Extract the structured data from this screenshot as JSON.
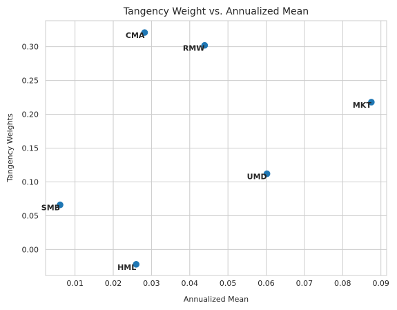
{
  "chart_data": {
    "type": "scatter",
    "title": "Tangency Weight vs. Annualized Mean",
    "xlabel": "Annualized Mean",
    "ylabel": "Tangency Weights",
    "xlim": [
      0.0023,
      0.0915
    ],
    "ylim": [
      -0.0385,
      0.3385
    ],
    "xticks": [
      0.01,
      0.02,
      0.03,
      0.04,
      0.05,
      0.06,
      0.07,
      0.08,
      0.09
    ],
    "xtick_labels": [
      "0.01",
      "0.02",
      "0.03",
      "0.04",
      "0.05",
      "0.06",
      "0.07",
      "0.08",
      "0.09"
    ],
    "yticks": [
      0.0,
      0.05,
      0.1,
      0.15,
      0.2,
      0.25,
      0.3
    ],
    "ytick_labels": [
      "0.00",
      "0.05",
      "0.10",
      "0.15",
      "0.20",
      "0.25",
      "0.30"
    ],
    "grid": true,
    "point_color": "#1f77b4",
    "points": [
      {
        "label": "CMA",
        "x": 0.0282,
        "y": 0.321
      },
      {
        "label": "RMW",
        "x": 0.0439,
        "y": 0.302
      },
      {
        "label": "MKT",
        "x": 0.0875,
        "y": 0.218
      },
      {
        "label": "UMD",
        "x": 0.0602,
        "y": 0.112
      },
      {
        "label": "SMB",
        "x": 0.0061,
        "y": 0.066
      },
      {
        "label": "HML",
        "x": 0.026,
        "y": -0.022
      }
    ]
  }
}
